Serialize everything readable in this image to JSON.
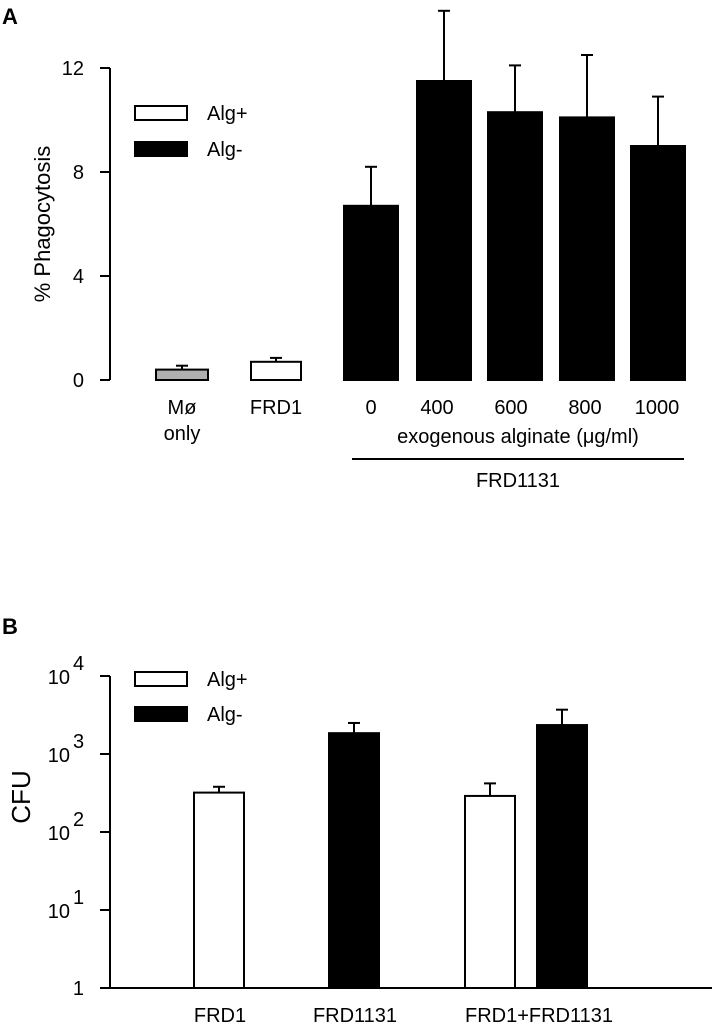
{
  "chart_data": [
    {
      "panel": "A",
      "type": "bar",
      "ylabel": "% Phagocytosis",
      "ylim": [
        0,
        12
      ],
      "yticks": [
        0,
        4,
        8,
        12
      ],
      "legend": [
        {
          "label": "Alg+",
          "color": "#ffffff"
        },
        {
          "label": "Alg-",
          "color": "#000000"
        }
      ],
      "bars": [
        {
          "label": "Mø only",
          "group": "Mø only",
          "value": 0.4,
          "error": 0.15,
          "color": "#b0b0b0"
        },
        {
          "label": "FRD1",
          "group": "FRD1",
          "value": 0.7,
          "error": 0.15,
          "color": "#ffffff"
        },
        {
          "label": "0",
          "group": "FRD1131",
          "value": 6.7,
          "error": 1.5,
          "color": "#000000"
        },
        {
          "label": "400",
          "group": "FRD1131",
          "value": 11.5,
          "error": 2.7,
          "color": "#000000"
        },
        {
          "label": "600",
          "group": "FRD1131",
          "value": 10.3,
          "error": 1.8,
          "color": "#000000"
        },
        {
          "label": "800",
          "group": "FRD1131",
          "value": 10.1,
          "error": 2.4,
          "color": "#000000"
        },
        {
          "label": "1000",
          "group": "FRD1131",
          "value": 9.0,
          "error": 1.9,
          "color": "#000000"
        }
      ],
      "category_labels": {
        "mo_line1": "Mø",
        "mo_line2": "only",
        "frd1": "FRD1",
        "alginate": [
          "0",
          "400",
          "600",
          "800",
          "1000"
        ]
      },
      "subaxis_label": "exogenous alginate (μg/ml)",
      "group_label": "FRD1131"
    },
    {
      "panel": "B",
      "type": "bar",
      "ylabel": "CFU",
      "yscale": "log",
      "ylim": [
        1,
        10000
      ],
      "yticks": [
        "1",
        "10^1",
        "10^2",
        "10^3",
        "10^4"
      ],
      "legend": [
        {
          "label": "Alg+",
          "color": "#ffffff"
        },
        {
          "label": "Alg-",
          "color": "#000000"
        }
      ],
      "categories": [
        "FRD1",
        "FRD1131",
        "FRD1+FRD1131"
      ],
      "bars": [
        {
          "category": "FRD1",
          "series": "Alg+",
          "value": 320,
          "err_low": 270,
          "err_high": 380
        },
        {
          "category": "FRD1131",
          "series": "Alg-",
          "value": 1850,
          "err_high": 2500
        },
        {
          "category": "FRD1+FRD1131",
          "series": "Alg+",
          "value": 290,
          "err_low": 200,
          "err_high": 420
        },
        {
          "category": "FRD1+FRD1131",
          "series": "Alg-",
          "value": 2350,
          "err_high": 3700
        }
      ]
    }
  ],
  "figure": {
    "panel_a_letter": "A",
    "panel_b_letter": "B"
  }
}
